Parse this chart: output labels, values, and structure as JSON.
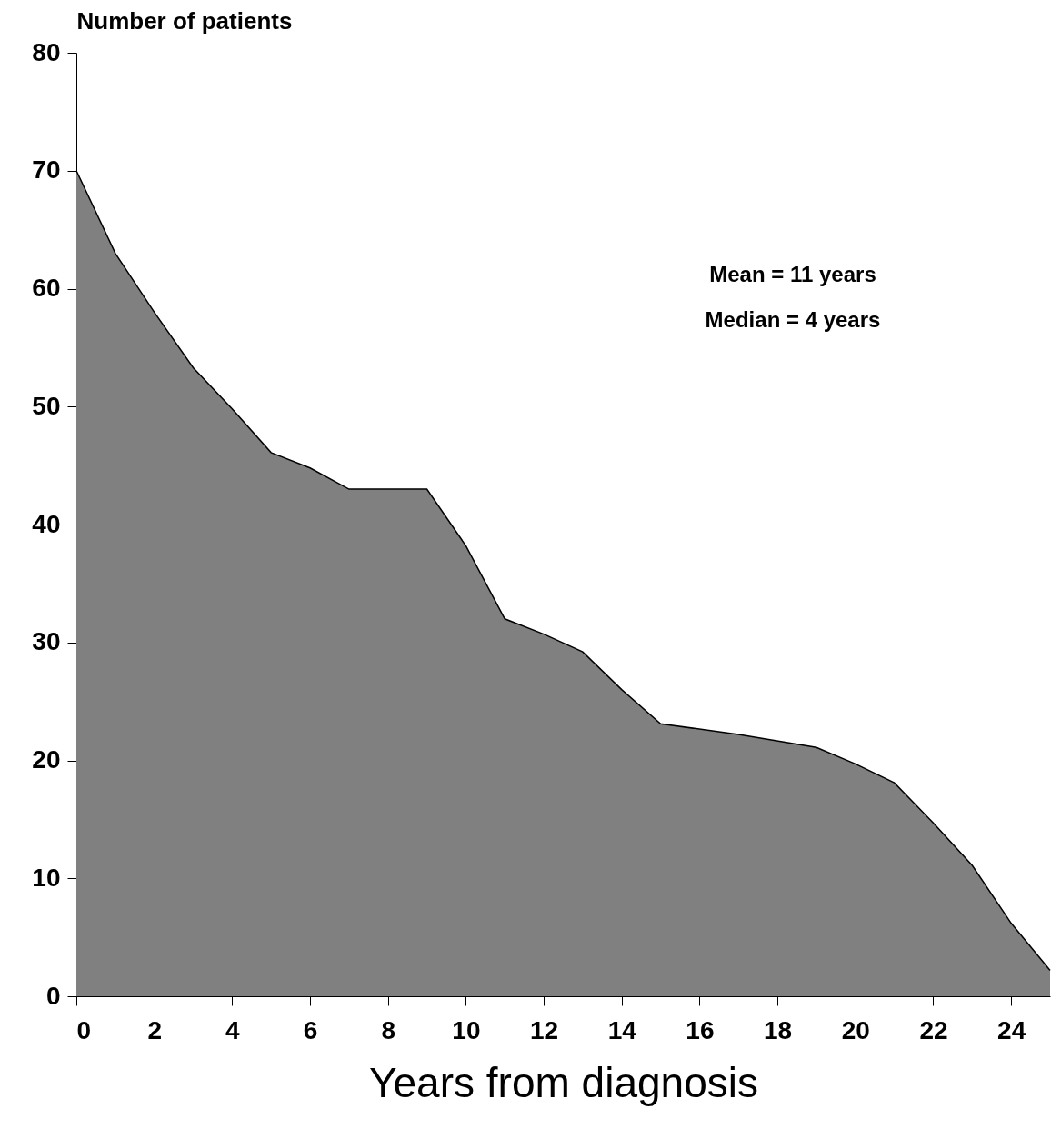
{
  "chart_data": {
    "type": "area",
    "xlabel": "Years from diagnosis",
    "ylabel": "Number of patients",
    "x": [
      0,
      1,
      2,
      3,
      4,
      5,
      6,
      7,
      9,
      10,
      11,
      12,
      13,
      14,
      15,
      17,
      19,
      20,
      21,
      22,
      23,
      24,
      25
    ],
    "series": [
      {
        "color": "#808080",
        "values": [
          70,
          63,
          58,
          53.3,
          49.8,
          46.1,
          44.8,
          43,
          43,
          38.2,
          32,
          30.7,
          29.2,
          26,
          23.1,
          22.2,
          21.1,
          19.7,
          18.1,
          14.7,
          11.1,
          6.2,
          2.2
        ]
      }
    ],
    "xlim": [
      0,
      25
    ],
    "ylim": [
      0,
      80
    ],
    "xticks": [
      0,
      2,
      4,
      6,
      8,
      10,
      12,
      14,
      16,
      18,
      20,
      22,
      24
    ],
    "yticks": [
      0,
      10,
      20,
      30,
      40,
      50,
      60,
      70,
      80
    ],
    "grid": false,
    "annotations": [
      "Mean = 11 years",
      "Median = 4 years"
    ]
  }
}
